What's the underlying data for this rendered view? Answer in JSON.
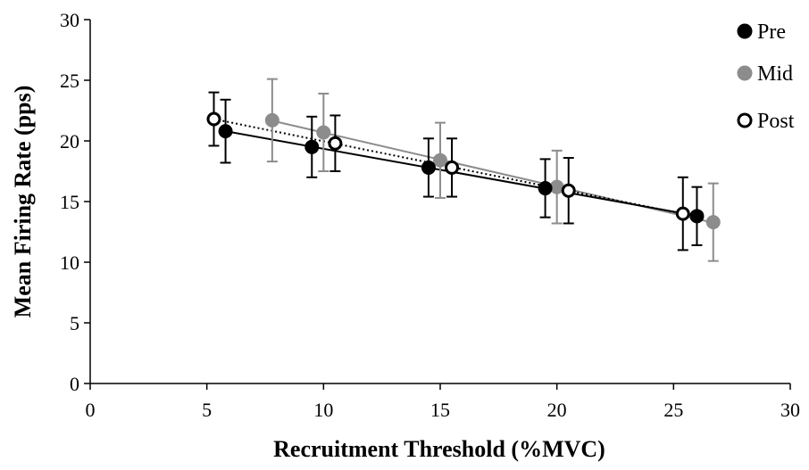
{
  "chart_data": {
    "type": "scatter",
    "xlabel": "Recruitment Threshold (%MVC)",
    "ylabel": "Mean Firing Rate (pps)",
    "xlim": [
      0,
      30
    ],
    "ylim": [
      0,
      30
    ],
    "xticks": [
      0,
      5,
      10,
      15,
      20,
      25,
      30
    ],
    "yticks": [
      0,
      5,
      10,
      15,
      20,
      25,
      30
    ],
    "grid": false,
    "legend_position": "top-right",
    "series": [
      {
        "name": "Pre",
        "marker": "filled",
        "color": "#000000",
        "line_style": "solid",
        "points": [
          {
            "x": 5.8,
            "y": 20.8,
            "err": 2.6
          },
          {
            "x": 9.5,
            "y": 19.5,
            "err": 2.5
          },
          {
            "x": 14.5,
            "y": 17.8,
            "err": 2.4
          },
          {
            "x": 19.5,
            "y": 16.1,
            "err": 2.4
          },
          {
            "x": 26.0,
            "y": 13.8,
            "err": 2.4
          }
        ]
      },
      {
        "name": "Mid",
        "marker": "filled",
        "color": "#8c8c8c",
        "line_style": "solid",
        "points": [
          {
            "x": 7.8,
            "y": 21.7,
            "err": 3.4
          },
          {
            "x": 10.0,
            "y": 20.7,
            "err": 3.2
          },
          {
            "x": 15.0,
            "y": 18.4,
            "err": 3.1
          },
          {
            "x": 20.0,
            "y": 16.2,
            "err": 3.0
          },
          {
            "x": 26.7,
            "y": 13.3,
            "err": 3.2
          }
        ]
      },
      {
        "name": "Post",
        "marker": "open",
        "color": "#000000",
        "line_style": "dotted",
        "points": [
          {
            "x": 5.3,
            "y": 21.8,
            "err": 2.2
          },
          {
            "x": 10.5,
            "y": 19.8,
            "err": 2.3
          },
          {
            "x": 15.5,
            "y": 17.8,
            "err": 2.4
          },
          {
            "x": 20.5,
            "y": 15.9,
            "err": 2.7
          },
          {
            "x": 25.4,
            "y": 14.0,
            "err": 3.0
          }
        ]
      }
    ]
  }
}
